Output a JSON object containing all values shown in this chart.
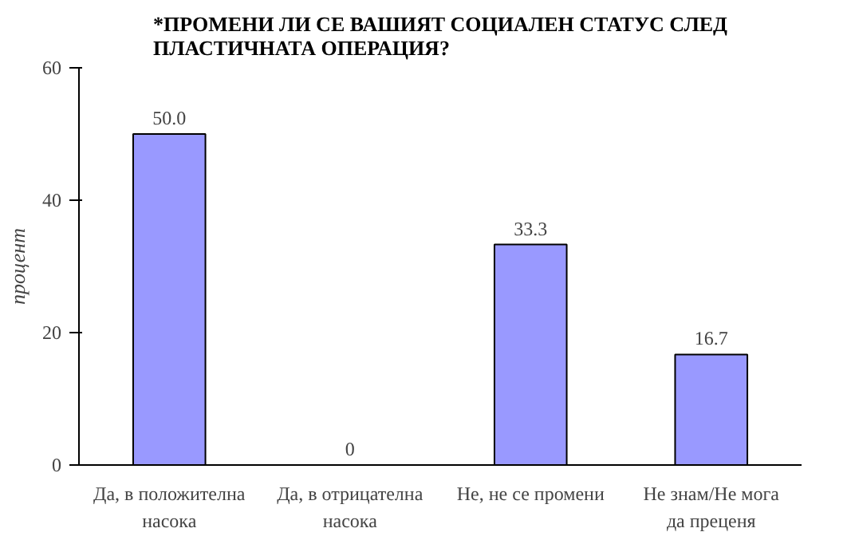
{
  "chart_data": {
    "type": "bar",
    "title": "*ПРОМЕНИ ЛИ СЕ ВАШИЯТ СОЦИАЛЕН СТАТУС СЛЕД ПЛАСТИЧНАТА ОПЕРАЦИЯ?",
    "ylabel": "процент",
    "categories": [
      "Да, в положителна насока",
      "Да, в отрицателна насока",
      "Не, не се промени",
      "Не знам/Не мога да преценя"
    ],
    "values": [
      50.0,
      0,
      33.3,
      16.7
    ],
    "value_labels": [
      "50.0",
      "0",
      "33.3",
      "16.7"
    ],
    "color": "#9999ff",
    "ylim": [
      0,
      60
    ],
    "yticks": [
      0,
      20,
      40,
      60
    ],
    "grid": false
  }
}
